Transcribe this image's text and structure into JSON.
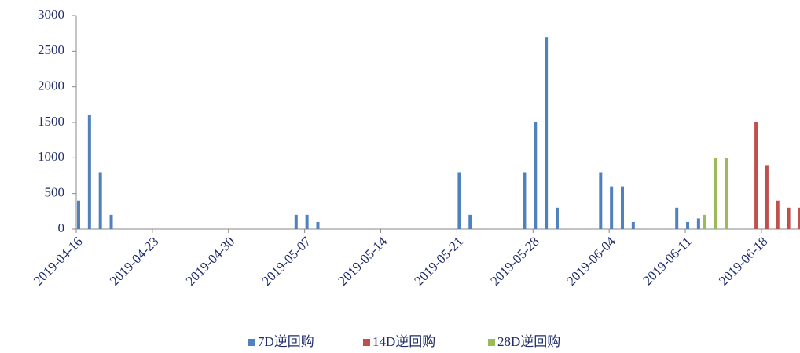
{
  "chart_data": {
    "type": "bar",
    "categories": [
      "2019-04-16",
      null,
      null,
      null,
      null,
      null,
      null,
      "2019-04-23",
      null,
      null,
      null,
      null,
      null,
      null,
      "2019-04-30",
      null,
      null,
      null,
      null,
      null,
      null,
      "2019-05-07",
      null,
      null,
      null,
      null,
      null,
      null,
      "2019-05-14",
      null,
      null,
      null,
      null,
      null,
      null,
      "2019-05-21",
      null,
      null,
      null,
      null,
      null,
      null,
      "2019-05-28",
      null,
      null,
      null,
      null,
      null,
      null,
      "2019-06-04",
      null,
      null,
      null,
      null,
      null,
      null,
      "2019-06-11",
      null,
      null,
      null,
      null,
      null,
      null,
      "2019-06-18",
      null,
      null,
      null
    ],
    "series": [
      {
        "name": "7D逆回购",
        "color": "#4f81bd",
        "values": [
          400,
          1600,
          800,
          200,
          null,
          null,
          null,
          null,
          null,
          null,
          null,
          null,
          null,
          null,
          null,
          null,
          null,
          null,
          null,
          null,
          200,
          200,
          100,
          null,
          null,
          null,
          null,
          null,
          null,
          null,
          null,
          null,
          null,
          null,
          null,
          800,
          200,
          null,
          null,
          null,
          null,
          800,
          1500,
          2700,
          300,
          null,
          null,
          null,
          800,
          600,
          600,
          100,
          null,
          null,
          null,
          300,
          100,
          150,
          null,
          null,
          null,
          null,
          null,
          null,
          null,
          null,
          null
        ]
      },
      {
        "name": "14D逆回购",
        "color": "#c0504d",
        "values": [
          null,
          null,
          null,
          null,
          null,
          null,
          null,
          null,
          null,
          null,
          null,
          null,
          null,
          null,
          null,
          null,
          null,
          null,
          null,
          null,
          null,
          null,
          null,
          null,
          null,
          null,
          null,
          null,
          null,
          null,
          null,
          null,
          null,
          null,
          null,
          null,
          null,
          null,
          null,
          null,
          null,
          null,
          null,
          null,
          null,
          null,
          null,
          null,
          null,
          null,
          null,
          null,
          null,
          null,
          null,
          null,
          null,
          null,
          null,
          null,
          null,
          null,
          1500,
          900,
          400,
          300,
          300
        ]
      },
      {
        "name": "28D逆回购",
        "color": "#9bbb59",
        "values": [
          null,
          null,
          null,
          null,
          null,
          null,
          null,
          null,
          null,
          null,
          null,
          null,
          null,
          null,
          null,
          null,
          null,
          null,
          null,
          null,
          null,
          null,
          null,
          null,
          null,
          null,
          null,
          null,
          null,
          null,
          null,
          null,
          null,
          null,
          null,
          null,
          null,
          null,
          null,
          null,
          null,
          null,
          null,
          null,
          null,
          null,
          null,
          null,
          null,
          null,
          null,
          null,
          null,
          null,
          null,
          null,
          null,
          200,
          1000,
          1000,
          null,
          null,
          null,
          null,
          null,
          null,
          null
        ]
      }
    ],
    "ylim": [
      0,
      3000
    ],
    "yticks": [
      0,
      500,
      1000,
      1500,
      2000,
      2500,
      3000
    ],
    "grid": false,
    "legend": "bottom"
  }
}
